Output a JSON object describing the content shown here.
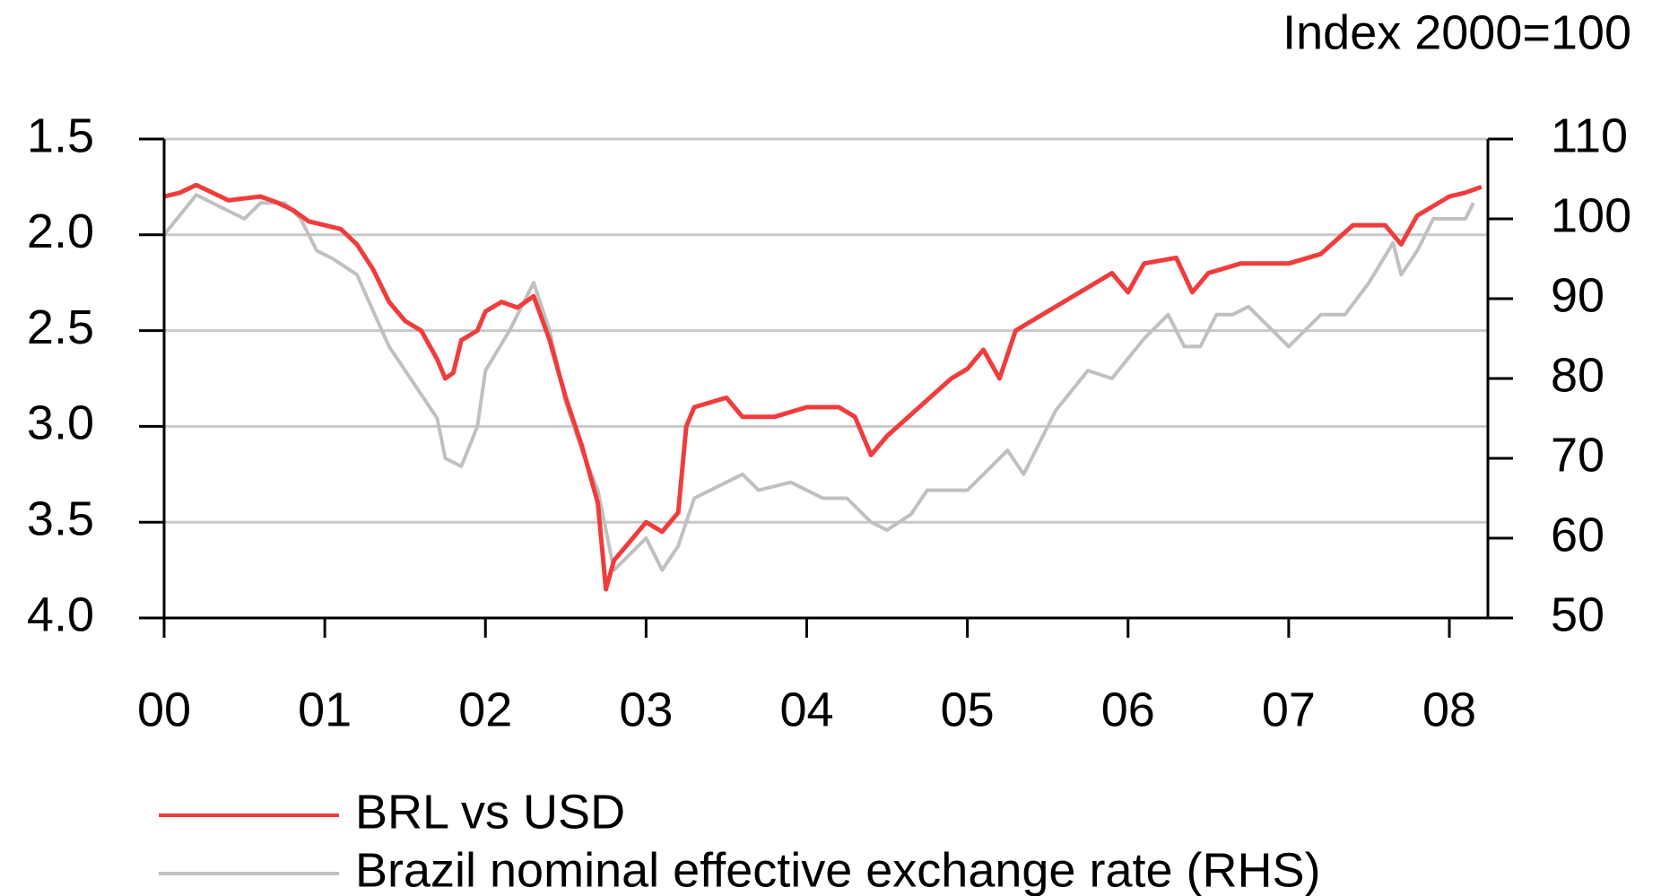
{
  "chart_data": {
    "type": "line",
    "annotations": [
      "Index 2000=100"
    ],
    "xlim": [
      0,
      8.24
    ],
    "xticks": [
      {
        "value": 0,
        "label": "00"
      },
      {
        "value": 1,
        "label": "01"
      },
      {
        "value": 2,
        "label": "02"
      },
      {
        "value": 3,
        "label": "03"
      },
      {
        "value": 4,
        "label": "04"
      },
      {
        "value": 5,
        "label": "05"
      },
      {
        "value": 6,
        "label": "06"
      },
      {
        "value": 7,
        "label": "07"
      },
      {
        "value": 8,
        "label": "08"
      }
    ],
    "ylim": [
      1.5,
      4.0
    ],
    "y_inverted": true,
    "yticks": [
      1.5,
      {
        "value": 2,
        "label": "2.0"
      },
      2.5,
      {
        "value": 3,
        "label": "3.0"
      },
      3.5,
      {
        "value": 4,
        "label": "4.0"
      }
    ],
    "y2lim": [
      50,
      110
    ],
    "y2ticks": [
      50,
      60,
      70,
      80,
      90,
      100,
      110
    ],
    "grid": true,
    "legend": "bottom",
    "series": [
      {
        "name": "BRL vs USD",
        "color": "#f03c3c",
        "x": [
          0.0,
          0.1,
          0.2,
          0.3,
          0.4,
          0.5,
          0.6,
          0.7,
          0.8,
          0.9,
          1.0,
          1.1,
          1.2,
          1.3,
          1.4,
          1.5,
          1.6,
          1.7,
          1.75,
          1.8,
          1.85,
          1.95,
          2.0,
          2.1,
          2.2,
          2.3,
          2.4,
          2.5,
          2.6,
          2.7,
          2.75,
          2.8,
          2.9,
          3.0,
          3.1,
          3.2,
          3.25,
          3.3,
          3.5,
          3.6,
          3.8,
          4.0,
          4.2,
          4.3,
          4.4,
          4.5,
          4.7,
          4.9,
          5.0,
          5.1,
          5.2,
          5.3,
          5.5,
          5.7,
          5.9,
          6.0,
          6.1,
          6.3,
          6.4,
          6.5,
          6.7,
          6.9,
          7.0,
          7.2,
          7.4,
          7.6,
          7.7,
          7.8,
          8.0,
          8.1,
          8.2
        ],
        "values": [
          1.8,
          1.78,
          1.74,
          1.78,
          1.82,
          1.81,
          1.8,
          1.83,
          1.87,
          1.93,
          1.95,
          1.97,
          2.05,
          2.18,
          2.35,
          2.45,
          2.5,
          2.65,
          2.75,
          2.72,
          2.55,
          2.5,
          2.4,
          2.35,
          2.38,
          2.32,
          2.55,
          2.85,
          3.1,
          3.4,
          3.85,
          3.7,
          3.6,
          3.5,
          3.55,
          3.45,
          3.0,
          2.9,
          2.85,
          2.95,
          2.95,
          2.9,
          2.9,
          2.95,
          3.15,
          3.05,
          2.9,
          2.75,
          2.7,
          2.6,
          2.75,
          2.5,
          2.4,
          2.3,
          2.2,
          2.3,
          2.15,
          2.12,
          2.3,
          2.2,
          2.15,
          2.15,
          2.15,
          2.1,
          1.95,
          1.95,
          2.05,
          1.9,
          1.8,
          1.78,
          1.75
        ]
      },
      {
        "name": "Brazil nominal effective exchange rate (RHS)",
        "color": "#c0c0c0",
        "axis": "y2",
        "x": [
          0.0,
          0.2,
          0.3,
          0.5,
          0.6,
          0.75,
          0.85,
          0.95,
          1.05,
          1.2,
          1.4,
          1.6,
          1.7,
          1.75,
          1.85,
          1.95,
          2.0,
          2.15,
          2.3,
          2.4,
          2.5,
          2.6,
          2.7,
          2.8,
          2.9,
          3.0,
          3.1,
          3.2,
          3.3,
          3.5,
          3.6,
          3.7,
          3.9,
          4.0,
          4.1,
          4.25,
          4.4,
          4.5,
          4.65,
          4.75,
          5.0,
          5.15,
          5.25,
          5.35,
          5.55,
          5.75,
          5.9,
          6.1,
          6.25,
          6.35,
          6.45,
          6.55,
          6.65,
          6.75,
          6.9,
          7.0,
          7.2,
          7.35,
          7.5,
          7.65,
          7.7,
          7.8,
          7.9,
          8.0,
          8.1,
          8.15
        ],
        "values": [
          98,
          103,
          102,
          100,
          102,
          102,
          100,
          96,
          95,
          93,
          84,
          78,
          75,
          70,
          69,
          74,
          81,
          86,
          92,
          86,
          77,
          71,
          66,
          56,
          58,
          60,
          56,
          59,
          65,
          67,
          68,
          66,
          67,
          66,
          65,
          65,
          62,
          61,
          63,
          66,
          66,
          69,
          71,
          68,
          76,
          81,
          80,
          85,
          88,
          84,
          84,
          88,
          88,
          89,
          86,
          84,
          88,
          88,
          92,
          97,
          93,
          96,
          100,
          100,
          100,
          102
        ]
      }
    ]
  }
}
